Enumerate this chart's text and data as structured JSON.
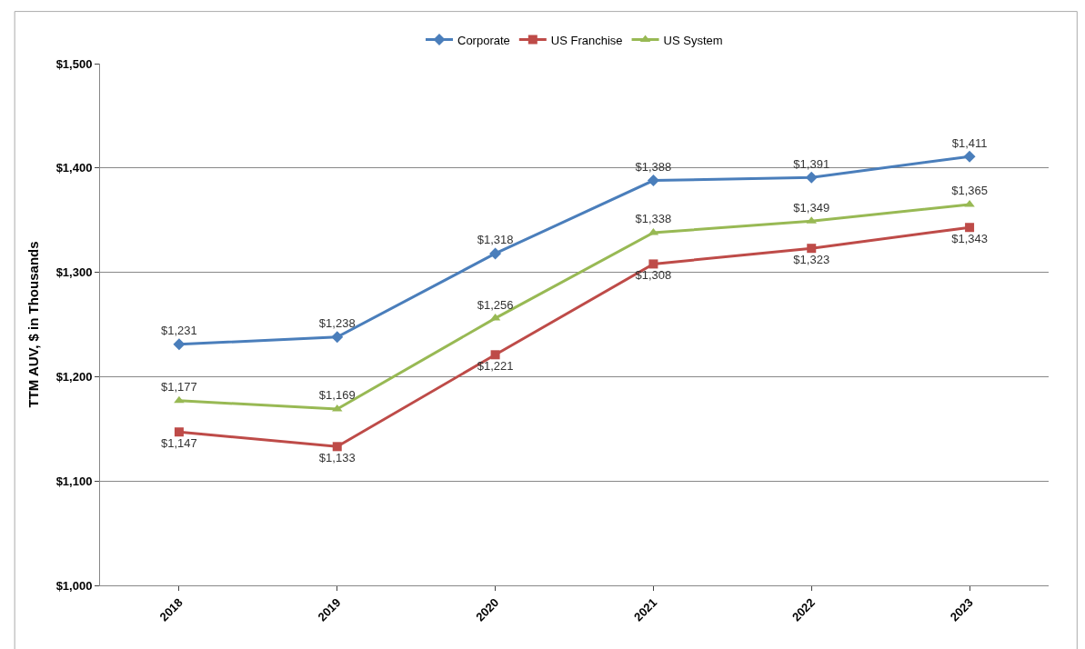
{
  "chart_data": {
    "type": "line",
    "ylabel": "TTM AUV, $ in Thousands",
    "categories": [
      "2018",
      "2019",
      "2020",
      "2021",
      "2022",
      "2023"
    ],
    "series": [
      {
        "name": "Corporate",
        "color": "#4a7ebb",
        "marker": "diamond",
        "values": [
          1231,
          1238,
          1318,
          1388,
          1391,
          1411
        ],
        "value_labels": [
          "$1,231",
          "$1,238",
          "$1,318",
          "$1,388",
          "$1,391",
          "$1,411"
        ]
      },
      {
        "name": "US Franchise",
        "color": "#be4b48",
        "marker": "square",
        "values": [
          1147,
          1133,
          1221,
          1308,
          1323,
          1343
        ],
        "value_labels": [
          "$1,147",
          "$1,133",
          "$1,221",
          "$1,308",
          "$1,323",
          "$1,343"
        ]
      },
      {
        "name": "US System",
        "color": "#98b954",
        "marker": "triangle",
        "values": [
          1177,
          1169,
          1256,
          1338,
          1349,
          1365
        ],
        "value_labels": [
          "$1,177",
          "$1,169",
          "$1,256",
          "$1,338",
          "$1,349",
          "$1,365"
        ]
      }
    ],
    "ylim": [
      1000,
      1500
    ],
    "yticks": [
      {
        "value": 1000,
        "label": "$1,000"
      },
      {
        "value": 1100,
        "label": "$1,100"
      },
      {
        "value": 1200,
        "label": "$1,200"
      },
      {
        "value": 1300,
        "label": "$1,300"
      },
      {
        "value": 1400,
        "label": "$1,400"
      },
      {
        "value": 1500,
        "label": "$1,500"
      }
    ],
    "grid": "y",
    "legend": "top",
    "line_style": "solid"
  }
}
